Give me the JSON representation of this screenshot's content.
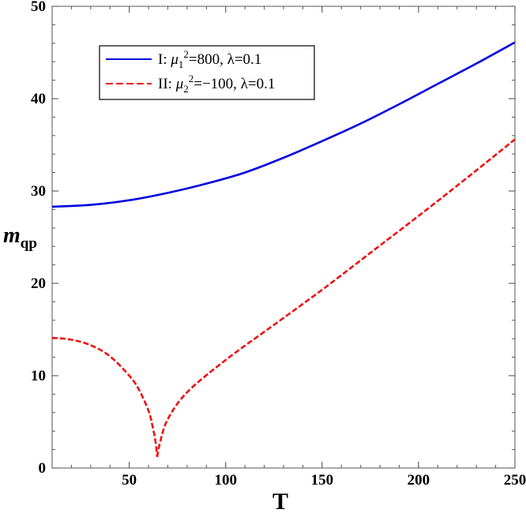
{
  "chart_data": {
    "type": "line",
    "xlabel": "T",
    "ylabel": "m",
    "ylabel_sub": "qp",
    "xlim": [
      10,
      250
    ],
    "ylim": [
      0,
      50
    ],
    "x_ticks": [
      50,
      100,
      150,
      200,
      250
    ],
    "y_ticks": [
      0,
      10,
      20,
      30,
      40,
      50
    ],
    "x_tick_labels": [
      "50",
      "100",
      "150",
      "200",
      "250"
    ],
    "y_tick_labels": [
      "0",
      "10",
      "20",
      "30",
      "40",
      "50"
    ],
    "grid": false,
    "legend_position": "top-left",
    "series": [
      {
        "name": "I: μ1²=800, λ=0.1",
        "legend": {
          "prefix": "I: ",
          "mu": "μ",
          "sub": "1",
          "sup": "2",
          "rest": "=800, λ=0.1"
        },
        "color": "#0000dd",
        "style": "solid",
        "x": [
          10,
          30,
          50,
          70,
          90,
          110,
          130,
          150,
          170,
          190,
          210,
          230,
          250
        ],
        "y": [
          28.3,
          28.5,
          29.0,
          29.8,
          30.8,
          32.0,
          33.6,
          35.4,
          37.3,
          39.4,
          41.6,
          43.8,
          46.1
        ]
      },
      {
        "name": "II: μ2²=−100, λ=0.1",
        "legend": {
          "prefix": "II: ",
          "mu": "μ",
          "sub": "2",
          "sup": "2",
          "rest": "=−100, λ=0.1"
        },
        "color": "#ee1111",
        "style": "dashed",
        "x": [
          10,
          20,
          30,
          40,
          50,
          55,
          60,
          62,
          63.5,
          64.5,
          66,
          70,
          80,
          100,
          125,
          150,
          175,
          200,
          225,
          250
        ],
        "y": [
          14.1,
          13.9,
          13.3,
          12.1,
          10.0,
          8.5,
          6.2,
          4.6,
          3.0,
          1.2,
          2.8,
          5.3,
          8.2,
          11.7,
          15.5,
          19.3,
          23.3,
          27.3,
          31.4,
          35.6
        ]
      }
    ]
  }
}
